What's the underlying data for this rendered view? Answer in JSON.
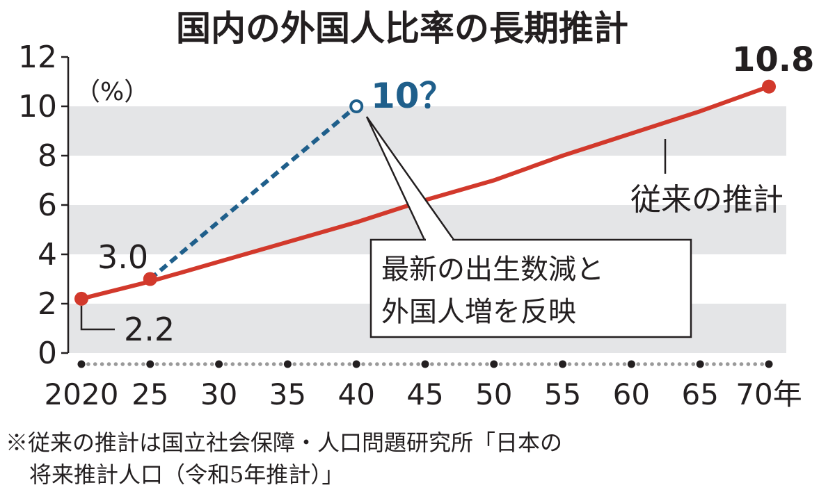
{
  "chart_data": {
    "type": "line",
    "title": "国内の外国人比率の長期推計",
    "ylabel": "（%）",
    "ylim": [
      0,
      12
    ],
    "yticks": [
      "0",
      "2",
      "4",
      "6",
      "8",
      "10",
      "12"
    ],
    "xlim": [
      2020,
      2070
    ],
    "xtick_labels": [
      {
        "year": 2020,
        "label": "2020"
      },
      {
        "year": 2025,
        "label": "25"
      },
      {
        "year": 2030,
        "label": "30"
      },
      {
        "year": 2035,
        "label": "35"
      },
      {
        "year": 2040,
        "label": "40"
      },
      {
        "year": 2045,
        "label": "45"
      },
      {
        "year": 2050,
        "label": "50"
      },
      {
        "year": 2055,
        "label": "55"
      },
      {
        "year": 2060,
        "label": "60"
      },
      {
        "year": 2065,
        "label": "65"
      },
      {
        "year": 2070,
        "label": "70年"
      }
    ],
    "grid_bands": "alternating horizontal gray bands",
    "series": [
      {
        "name": "従来の推計",
        "color": "#d2392c",
        "style": "solid",
        "x": [
          2020,
          2025,
          2030,
          2035,
          2040,
          2045,
          2050,
          2055,
          2060,
          2065,
          2070
        ],
        "y": [
          2.2,
          2.9,
          3.7,
          4.5,
          5.3,
          6.2,
          7.0,
          8.0,
          8.9,
          9.8,
          10.8
        ]
      },
      {
        "name": "最新の出生数減と外国人増を反映",
        "color": "#1f5f8b",
        "style": "dashed",
        "x": [
          2025,
          2040
        ],
        "y": [
          3.0,
          10.0
        ]
      }
    ],
    "data_labels": {
      "start": "2.2",
      "y2025": "3.0",
      "end": "10.8",
      "projection": "10？"
    },
    "annotations": {
      "baseline_series": "従来の推計",
      "callout_line1": "最新の出生数減と",
      "callout_line2": "外国人増を反映"
    },
    "footnote_line1": "※従来の推計は国立社会保障・人口問題研究所「日本の",
    "footnote_line2": "将来推計人口（令和5年推計）」"
  }
}
